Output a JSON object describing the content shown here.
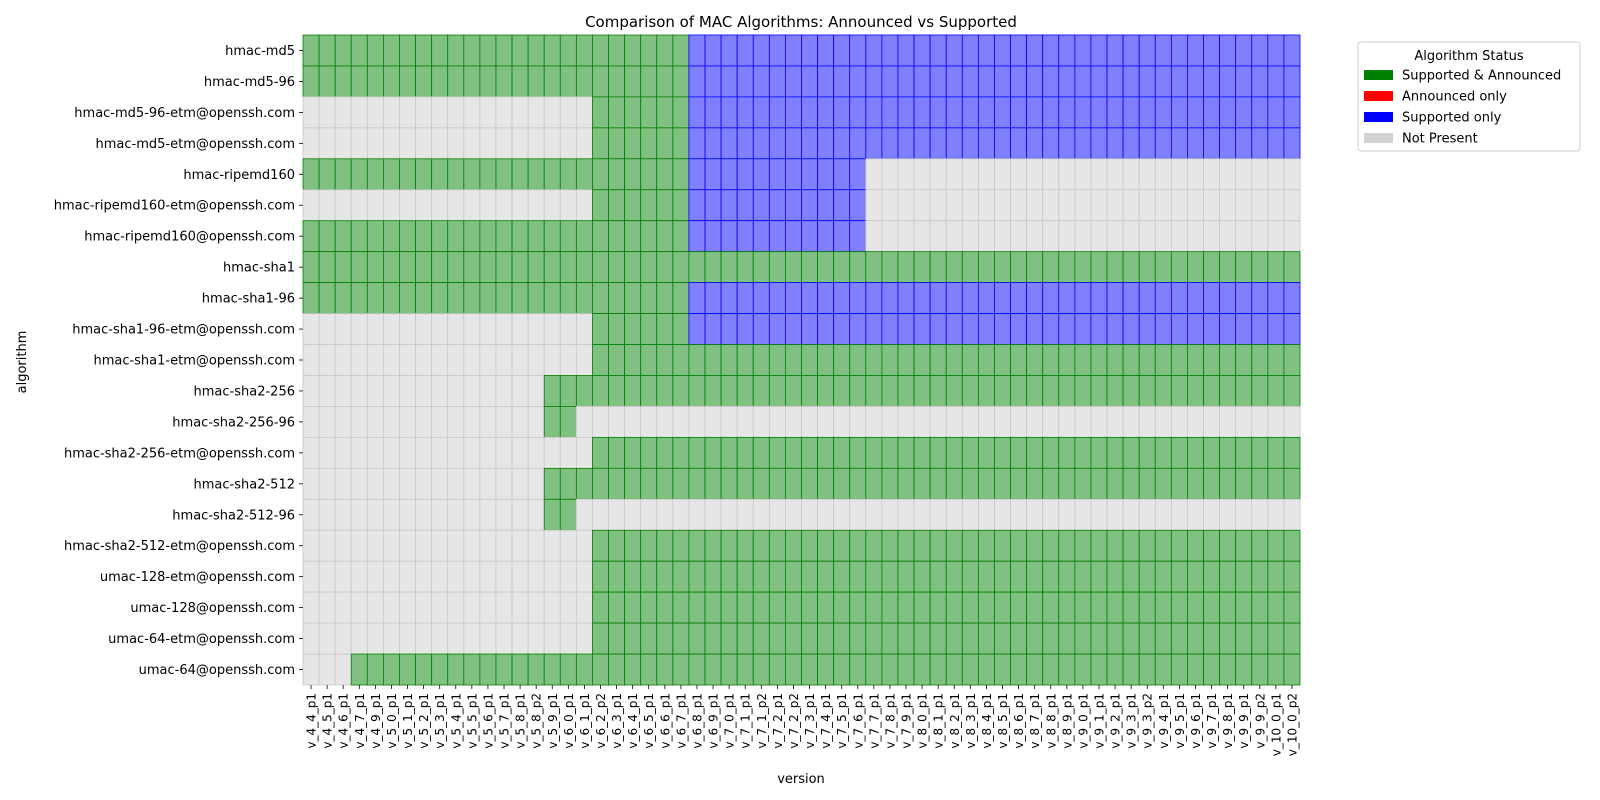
{
  "chart_data": {
    "type": "heatmap",
    "title": "Comparison of MAC Algorithms: Announced vs Supported",
    "xlabel": "version",
    "ylabel": "algorithm",
    "legend": {
      "title": "Algorithm Status",
      "placement": "top-right outside",
      "entries": [
        {
          "label": "Supported & Announced",
          "status": "SA",
          "color": "#008000"
        },
        {
          "label": "Announced only",
          "status": "A",
          "color": "#ff0000"
        },
        {
          "label": "Supported only",
          "status": "S",
          "color": "#0000ff"
        },
        {
          "label": "Not Present",
          "status": "N",
          "color": "#d3d3d3"
        }
      ]
    },
    "cell_styles": {
      "SA": {
        "fill": "#80c080",
        "stroke": "#008000"
      },
      "A": {
        "fill": "#ff8080",
        "stroke": "#ff0000"
      },
      "S": {
        "fill": "#8080ff",
        "stroke": "#0000ff"
      },
      "N": {
        "fill": "#e6e6e6",
        "stroke": "#c8c8c8"
      }
    },
    "versions": [
      "v_4_4_p1",
      "v_4_5_p1",
      "v_4_6_p1",
      "v_4_7_p1",
      "v_4_9_p1",
      "v_5_0_p1",
      "v_5_1_p1",
      "v_5_2_p1",
      "v_5_3_p1",
      "v_5_4_p1",
      "v_5_5_p1",
      "v_5_6_p1",
      "v_5_7_p1",
      "v_5_8_p1",
      "v_5_8_p2",
      "v_5_9_p1",
      "v_6_0_p1",
      "v_6_1_p1",
      "v_6_2_p2",
      "v_6_3_p1",
      "v_6_4_p1",
      "v_6_5_p1",
      "v_6_6_p1",
      "v_6_7_p1",
      "v_6_8_p1",
      "v_6_9_p1",
      "v_7_0_p1",
      "v_7_1_p1",
      "v_7_1_p2",
      "v_7_2_p1",
      "v_7_2_p2",
      "v_7_3_p1",
      "v_7_4_p1",
      "v_7_5_p1",
      "v_7_6_p1",
      "v_7_7_p1",
      "v_7_8_p1",
      "v_7_9_p1",
      "v_8_0_p1",
      "v_8_1_p1",
      "v_8_2_p1",
      "v_8_3_p1",
      "v_8_4_p1",
      "v_8_5_p1",
      "v_8_6_p1",
      "v_8_7_p1",
      "v_8_8_p1",
      "v_8_9_p1",
      "v_9_0_p1",
      "v_9_1_p1",
      "v_9_2_p1",
      "v_9_3_p1",
      "v_9_3_p2",
      "v_9_4_p1",
      "v_9_5_p1",
      "v_9_6_p1",
      "v_9_7_p1",
      "v_9_8_p1",
      "v_9_9_p1",
      "v_9_9_p2",
      "v_10_0_p1",
      "v_10_0_p2"
    ],
    "algorithms": [
      {
        "name": "hmac-md5",
        "segments": [
          [
            "SA",
            24
          ],
          [
            "S",
            38
          ]
        ]
      },
      {
        "name": "hmac-md5-96",
        "segments": [
          [
            "SA",
            24
          ],
          [
            "S",
            38
          ]
        ]
      },
      {
        "name": "hmac-md5-96-etm@openssh.com",
        "segments": [
          [
            "N",
            18
          ],
          [
            "SA",
            6
          ],
          [
            "S",
            38
          ]
        ]
      },
      {
        "name": "hmac-md5-etm@openssh.com",
        "segments": [
          [
            "N",
            18
          ],
          [
            "SA",
            6
          ],
          [
            "S",
            38
          ]
        ]
      },
      {
        "name": "hmac-ripemd160",
        "segments": [
          [
            "SA",
            24
          ],
          [
            "S",
            11
          ],
          [
            "N",
            27
          ]
        ]
      },
      {
        "name": "hmac-ripemd160-etm@openssh.com",
        "segments": [
          [
            "N",
            18
          ],
          [
            "SA",
            6
          ],
          [
            "S",
            11
          ],
          [
            "N",
            27
          ]
        ]
      },
      {
        "name": "hmac-ripemd160@openssh.com",
        "segments": [
          [
            "SA",
            24
          ],
          [
            "S",
            11
          ],
          [
            "N",
            27
          ]
        ]
      },
      {
        "name": "hmac-sha1",
        "segments": [
          [
            "SA",
            62
          ]
        ]
      },
      {
        "name": "hmac-sha1-96",
        "segments": [
          [
            "SA",
            24
          ],
          [
            "S",
            38
          ]
        ]
      },
      {
        "name": "hmac-sha1-96-etm@openssh.com",
        "segments": [
          [
            "N",
            18
          ],
          [
            "SA",
            6
          ],
          [
            "S",
            38
          ]
        ]
      },
      {
        "name": "hmac-sha1-etm@openssh.com",
        "segments": [
          [
            "N",
            18
          ],
          [
            "SA",
            44
          ]
        ]
      },
      {
        "name": "hmac-sha2-256",
        "segments": [
          [
            "N",
            15
          ],
          [
            "SA",
            47
          ]
        ]
      },
      {
        "name": "hmac-sha2-256-96",
        "segments": [
          [
            "N",
            15
          ],
          [
            "SA",
            2
          ],
          [
            "N",
            45
          ]
        ]
      },
      {
        "name": "hmac-sha2-256-etm@openssh.com",
        "segments": [
          [
            "N",
            18
          ],
          [
            "SA",
            44
          ]
        ]
      },
      {
        "name": "hmac-sha2-512",
        "segments": [
          [
            "N",
            15
          ],
          [
            "SA",
            47
          ]
        ]
      },
      {
        "name": "hmac-sha2-512-96",
        "segments": [
          [
            "N",
            15
          ],
          [
            "SA",
            2
          ],
          [
            "N",
            45
          ]
        ]
      },
      {
        "name": "hmac-sha2-512-etm@openssh.com",
        "segments": [
          [
            "N",
            18
          ],
          [
            "SA",
            44
          ]
        ]
      },
      {
        "name": "umac-128-etm@openssh.com",
        "segments": [
          [
            "N",
            18
          ],
          [
            "SA",
            44
          ]
        ]
      },
      {
        "name": "umac-128@openssh.com",
        "segments": [
          [
            "N",
            18
          ],
          [
            "SA",
            44
          ]
        ]
      },
      {
        "name": "umac-64-etm@openssh.com",
        "segments": [
          [
            "N",
            18
          ],
          [
            "SA",
            44
          ]
        ]
      },
      {
        "name": "umac-64@openssh.com",
        "segments": [
          [
            "N",
            3
          ],
          [
            "SA",
            59
          ]
        ]
      }
    ]
  }
}
